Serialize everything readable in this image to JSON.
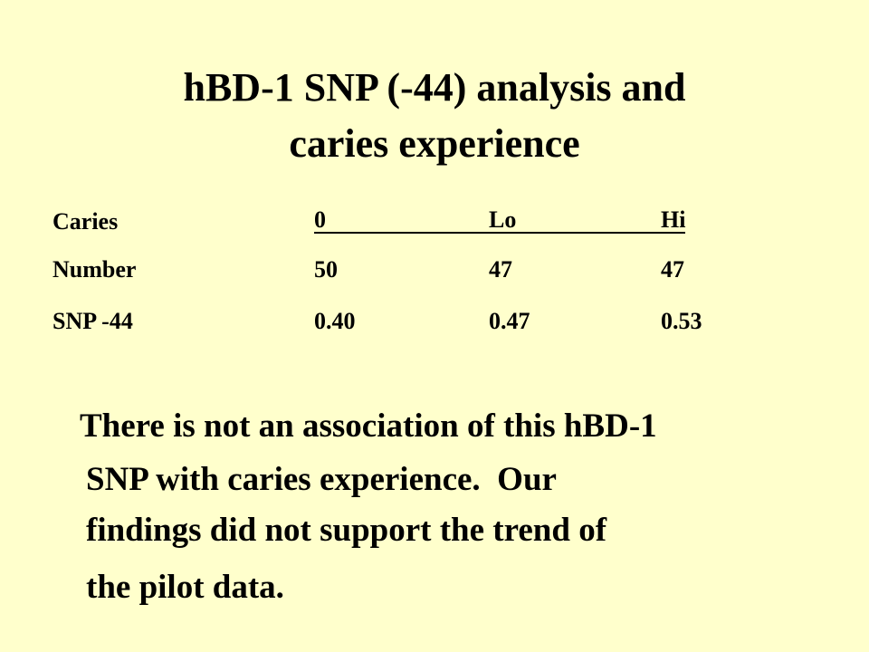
{
  "title": {
    "lines": [
      "hBD-1 SNP (-44) analysis and",
      "caries experience"
    ]
  },
  "table": {
    "rows": [
      [
        "Caries",
        "0",
        "Lo",
        "Hi"
      ],
      [
        "Number",
        "50",
        "47",
        "47"
      ],
      [
        "SNP -44",
        "0.40",
        "0.47",
        "0.53"
      ]
    ]
  },
  "conclusion": {
    "lines": [
      "There is not an association of this hBD-1",
      "SNP with caries experience.  Our",
      "findings did not support the trend of",
      "the pilot data."
    ]
  }
}
